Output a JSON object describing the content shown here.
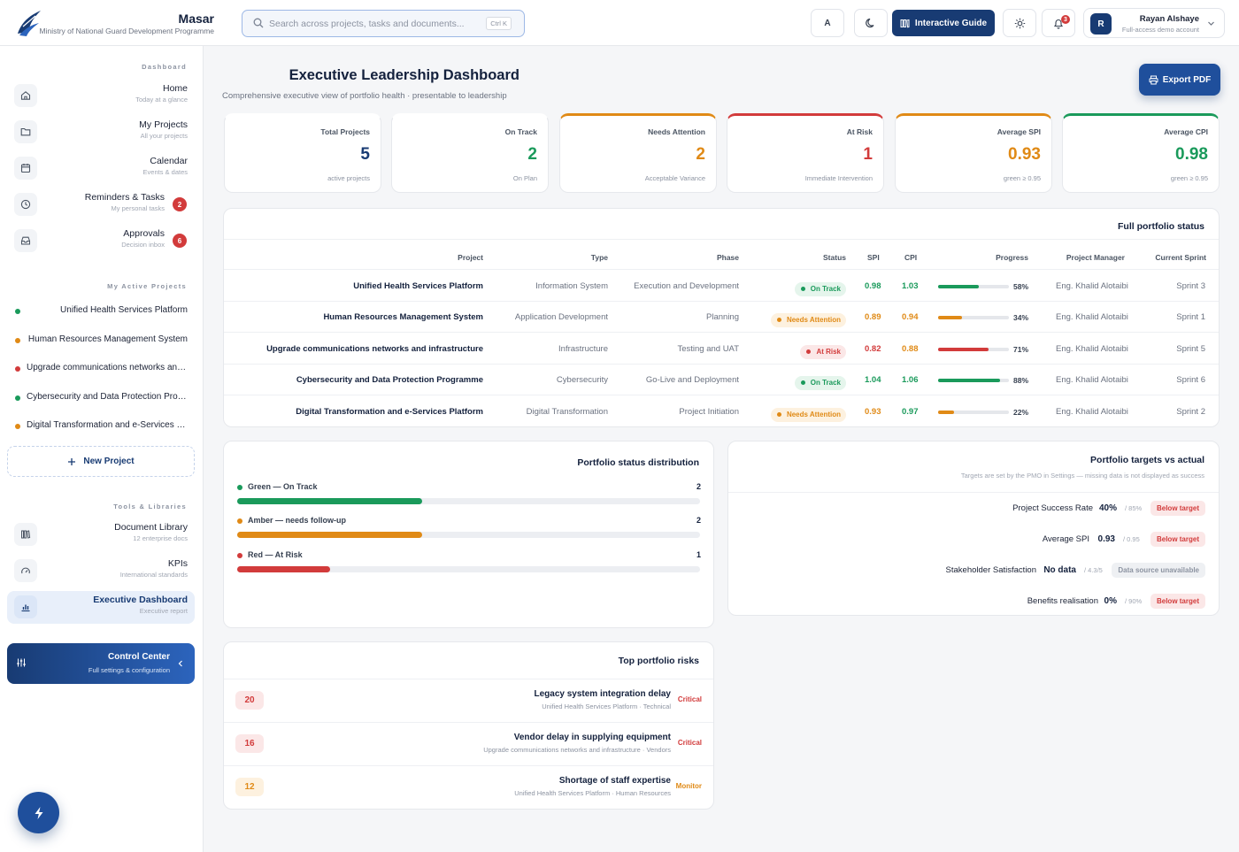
{
  "header": {
    "app_name": "Masar",
    "app_subtitle": "Ministry of National Guard Development Programme",
    "search_placeholder": "Search across projects, tasks and documents...",
    "search_shortcut": "Ctrl K",
    "font_button_label": "A",
    "guide_label": "Interactive Guide",
    "notification_count": "3",
    "user_initial": "R",
    "user_name": "Rayan Alshaye",
    "user_role": "Full-access demo account"
  },
  "sidebar": {
    "section_dashboard": "Dashboard",
    "nav": [
      {
        "label": "Home",
        "sub": "Today at a glance",
        "icon": "home-icon"
      },
      {
        "label": "My Projects",
        "sub": "All your projects",
        "icon": "folder-icon"
      },
      {
        "label": "Calendar",
        "sub": "Events & dates",
        "icon": "calendar-icon"
      },
      {
        "label": "Reminders & Tasks",
        "sub": "My personal tasks",
        "icon": "clock-icon",
        "badge": "2"
      },
      {
        "label": "Approvals",
        "sub": "Decision inbox",
        "icon": "inbox-icon",
        "badge": "6"
      }
    ],
    "section_projects": "My Active Projects",
    "projects": [
      {
        "label": "Unified Health Services Platform",
        "color": "#1a9a5b"
      },
      {
        "label": "Human Resources Management System",
        "color": "#e08a16"
      },
      {
        "label": "Upgrade communications networks and infrastructure",
        "color": "#d23b3b"
      },
      {
        "label": "Cybersecurity and Data Protection Programme",
        "color": "#1a9a5b"
      },
      {
        "label": "Digital Transformation and e-Services Platform",
        "color": "#e08a16"
      }
    ],
    "new_project_label": "New Project",
    "section_tools": "Tools & Libraries",
    "tools": [
      {
        "label": "Document Library",
        "sub": "12 enterprise docs",
        "icon": "library-icon"
      },
      {
        "label": "KPIs",
        "sub": "International standards",
        "icon": "gauge-icon"
      },
      {
        "label": "Executive Dashboard",
        "sub": "Executive report",
        "icon": "bar-chart-icon"
      }
    ],
    "control_center_title": "Control Center",
    "control_center_sub": "Full settings & configuration"
  },
  "main": {
    "title": "Executive Leadership Dashboard",
    "subtitle": "Comprehensive executive view of portfolio health · presentable to leadership",
    "export_label": "Export PDF"
  },
  "kpis": [
    {
      "title": "Total Projects",
      "value": "5",
      "sub": "active projects",
      "color": "#183b73",
      "top": "transparent"
    },
    {
      "title": "On Track",
      "value": "2",
      "sub": "On Plan",
      "color": "#1a9a5b",
      "top": "transparent"
    },
    {
      "title": "Needs Attention",
      "value": "2",
      "sub": "Acceptable Variance",
      "color": "#e08a16",
      "top": "#e08a16"
    },
    {
      "title": "At Risk",
      "value": "1",
      "sub": "Immediate Intervention",
      "color": "#d23b3b",
      "top": "#d23b3b"
    },
    {
      "title": "Average SPI",
      "value": "0.93",
      "sub": "green ≥ 0.95",
      "color": "#e08a16",
      "top": "#e08a16"
    },
    {
      "title": "Average CPI",
      "value": "0.98",
      "sub": "green ≥ 0.95",
      "color": "#1a9a5b",
      "top": "#1a9a5b"
    }
  ],
  "portfolio": {
    "title": "Full portfolio status",
    "columns": [
      "Project",
      "Type",
      "Phase",
      "Status",
      "SPI",
      "CPI",
      "Progress",
      "Project Manager",
      "Current Sprint"
    ],
    "rows": [
      {
        "project": "Unified Health Services Platform",
        "type": "Information System",
        "phase": "Execution and Development",
        "status": "On Track",
        "status_kind": "green",
        "spi": "0.98",
        "cpi": "1.03",
        "progress": 58,
        "progress_label": "58%",
        "manager": "Eng. Khalid Alotaibi",
        "sprint": "Sprint 3"
      },
      {
        "project": "Human Resources Management System",
        "type": "Application Development",
        "phase": "Planning",
        "status": "Needs Attention",
        "status_kind": "amber",
        "spi": "0.89",
        "cpi": "0.94",
        "progress": 34,
        "progress_label": "34%",
        "manager": "Eng. Khalid Alotaibi",
        "sprint": "Sprint 1"
      },
      {
        "project": "Upgrade communications networks and infrastructure",
        "type": "Infrastructure",
        "phase": "Testing and UAT",
        "status": "At Risk",
        "status_kind": "red",
        "spi": "0.82",
        "cpi": "0.88",
        "progress": 71,
        "progress_label": "71%",
        "manager": "Eng. Khalid Alotaibi",
        "sprint": "Sprint 5"
      },
      {
        "project": "Cybersecurity and Data Protection Programme",
        "type": "Cybersecurity",
        "phase": "Go-Live and Deployment",
        "status": "On Track",
        "status_kind": "green",
        "spi": "1.04",
        "cpi": "1.06",
        "progress": 88,
        "progress_label": "88%",
        "manager": "Eng. Khalid Alotaibi",
        "sprint": "Sprint 6"
      },
      {
        "project": "Digital Transformation and e-Services Platform",
        "type": "Digital Transformation",
        "phase": "Project Initiation",
        "status": "Needs Attention",
        "status_kind": "amber",
        "spi": "0.93",
        "cpi": "0.97",
        "progress": 22,
        "progress_label": "22%",
        "manager": "Eng. Khalid Alotaibi",
        "sprint": "Sprint 2"
      }
    ]
  },
  "distribution": {
    "title": "Portfolio status distribution",
    "max": 5,
    "items": [
      {
        "label": "Green — On Track",
        "value": 2,
        "value_label": "2",
        "color": "#1a9a5b"
      },
      {
        "label": "Amber — needs follow-up",
        "value": 2,
        "value_label": "2",
        "color": "#e08a16"
      },
      {
        "label": "Red — At Risk",
        "value": 1,
        "value_label": "1",
        "color": "#d23b3b"
      }
    ]
  },
  "targets": {
    "title": "Portfolio targets vs actual",
    "subtitle": "Targets are set by the PMO in Settings — missing data is not displayed as success",
    "items": [
      {
        "label": "Project Success Rate",
        "value": "40%",
        "goal": "/ 85%",
        "badge": "Below target",
        "kind": "red"
      },
      {
        "label": "Average SPI",
        "value": "0.93",
        "goal": "/ 0.95",
        "badge": "Below target",
        "kind": "red"
      },
      {
        "label": "Stakeholder Satisfaction",
        "value": "No data",
        "goal": "/ 4.3/5",
        "badge": "Data source unavailable",
        "kind": "gray"
      },
      {
        "label": "Benefits realisation",
        "value": "0%",
        "goal": "/ 90%",
        "badge": "Below target",
        "kind": "red"
      }
    ]
  },
  "risks": {
    "title": "Top portfolio risks",
    "items": [
      {
        "score": "20",
        "title": "Legacy system integration delay",
        "sub": "Unified Health Services Platform · Technical",
        "severity": "Critical",
        "kind": "red"
      },
      {
        "score": "16",
        "title": "Vendor delay in supplying equipment",
        "sub": "Upgrade communications networks and infrastructure · Vendors",
        "severity": "Critical",
        "kind": "red"
      },
      {
        "score": "12",
        "title": "Shortage of staff expertise",
        "sub": "Unified Health Services Platform · Human Resources",
        "severity": "Monitor",
        "kind": "amber"
      }
    ]
  },
  "colors": {
    "brand": "#183b73",
    "green": "#1a9a5b",
    "amber": "#e08a16",
    "red": "#d23b3b"
  }
}
